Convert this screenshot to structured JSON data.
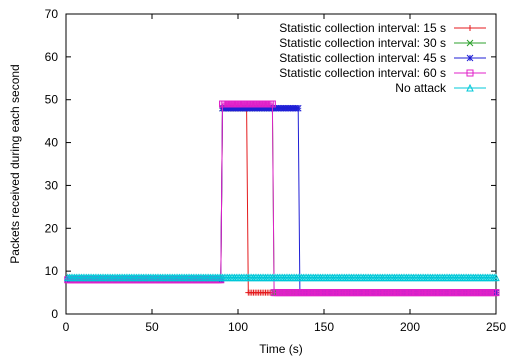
{
  "chart_data": {
    "type": "line",
    "title": "",
    "xlabel": "Time (s)",
    "ylabel": "Packets received during each second",
    "xlim": [
      0,
      250
    ],
    "ylim": [
      0,
      70
    ],
    "x_ticks": [
      0,
      50,
      100,
      150,
      200,
      250
    ],
    "y_ticks": [
      0,
      10,
      20,
      30,
      40,
      50,
      60,
      70
    ],
    "grid": false,
    "legend_position": "top-right",
    "series": [
      {
        "name": "Statistic collection interval: 15 s",
        "color": "#e41a1c",
        "marker": "plus",
        "points": [
          [
            1,
            8
          ],
          [
            90,
            8
          ],
          [
            91,
            48
          ],
          [
            105,
            48
          ],
          [
            106,
            5
          ],
          [
            250,
            5
          ]
        ]
      },
      {
        "name": "Statistic collection interval: 30 s",
        "color": "#2ca02c",
        "marker": "cross",
        "points": [
          [
            1,
            8
          ],
          [
            90,
            8
          ],
          [
            91,
            48
          ],
          [
            120,
            48
          ],
          [
            121,
            5
          ],
          [
            250,
            5
          ]
        ]
      },
      {
        "name": "Statistic collection interval: 45 s",
        "color": "#1f1fd6",
        "marker": "star",
        "points": [
          [
            1,
            8
          ],
          [
            90,
            8
          ],
          [
            91,
            48
          ],
          [
            135,
            48
          ],
          [
            136,
            5
          ],
          [
            250,
            5
          ]
        ]
      },
      {
        "name": "Statistic collection interval: 60 s",
        "color": "#e020c8",
        "marker": "square",
        "points": [
          [
            1,
            8
          ],
          [
            90,
            8
          ],
          [
            91,
            49
          ],
          [
            120,
            49
          ],
          [
            121,
            5
          ],
          [
            250,
            5
          ]
        ]
      },
      {
        "name": "No attack",
        "color": "#00c8d8",
        "marker": "triangle",
        "points": [
          [
            1,
            8.5
          ],
          [
            250,
            8.5
          ]
        ]
      }
    ]
  }
}
